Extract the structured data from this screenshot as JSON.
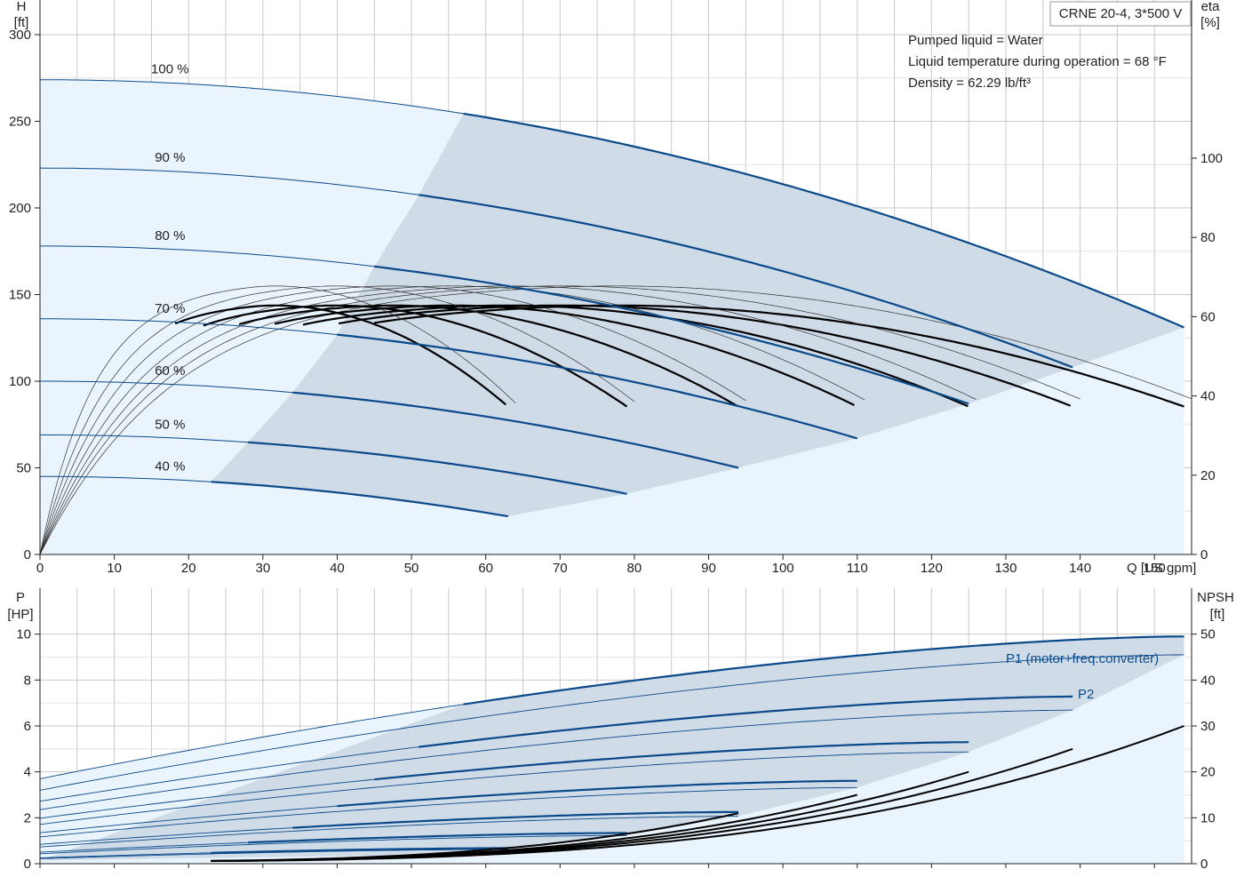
{
  "title_box": "CRNE 20-4, 3*500 V",
  "info_lines": [
    "Pumped liquid = Water",
    "Liquid temperature during operation = 68 °F",
    "Density = 62.29 lb/ft³"
  ],
  "colors": {
    "blue": "#0a4a8a",
    "region_light": "#eaf4fc",
    "region_dark": "#cfdbe7",
    "grid": "#c9c9c9",
    "black": "#000000"
  },
  "chart_data": [
    {
      "type": "line",
      "id": "head",
      "x_axis": {
        "label": "Q [US gpm]",
        "range": [
          0,
          155
        ],
        "ticks": [
          0,
          10,
          20,
          30,
          40,
          50,
          60,
          70,
          80,
          90,
          100,
          110,
          120,
          130,
          140,
          150
        ]
      },
      "y_left": {
        "label_lines": [
          "H",
          "[ft]"
        ],
        "range": [
          0,
          320
        ],
        "ticks": [
          0,
          50,
          100,
          150,
          200,
          250,
          300
        ]
      },
      "y_right": {
        "label_lines": [
          "eta",
          "[%]"
        ],
        "range": [
          0,
          100
        ],
        "ticks": [
          0,
          20,
          40,
          60,
          80,
          100
        ]
      },
      "grid": true,
      "speed_curves": [
        {
          "label": "100 %",
          "q_max": 154,
          "h0": 274,
          "h_end": 131,
          "q_rec_start": 57
        },
        {
          "label": "90 %",
          "q_max": 139,
          "h0": 223,
          "h_end": 108,
          "q_rec_start": 51
        },
        {
          "label": "80 %",
          "q_max": 125,
          "h0": 178,
          "h_end": 87,
          "q_rec_start": 45
        },
        {
          "label": "70 %",
          "q_max": 110,
          "h0": 136,
          "h_end": 67,
          "q_rec_start": 40
        },
        {
          "label": "60 %",
          "q_max": 94,
          "h0": 100,
          "h_end": 50,
          "q_rec_start": 34
        },
        {
          "label": "50 %",
          "q_max": 79,
          "h0": 69,
          "h_end": 35,
          "q_rec_start": 28
        },
        {
          "label": "40 %",
          "q_max": 63,
          "h0": 45,
          "h_end": 22,
          "q_rec_start": 23
        }
      ],
      "efficiency_peak_pct": 69,
      "efficiency_end_pct": 54
    },
    {
      "type": "line",
      "id": "power_npsh",
      "x_axis": {
        "range": [
          0,
          155
        ],
        "ticks": [
          0,
          10,
          20,
          30,
          40,
          50,
          60,
          70,
          80,
          90,
          100,
          110,
          120,
          130,
          140,
          150
        ]
      },
      "y_left": {
        "label_lines": [
          "P",
          "[HP]"
        ],
        "range": [
          0,
          12
        ],
        "ticks": [
          0,
          2,
          4,
          6,
          8,
          10
        ]
      },
      "y_right": {
        "label_lines": [
          "NPSH",
          "[ft]"
        ],
        "range": [
          0,
          60
        ],
        "ticks": [
          0,
          10,
          20,
          30,
          40,
          50
        ]
      },
      "grid": true,
      "series_labels": [
        "P1 (motor+freq.converter)",
        "P2"
      ],
      "p1_full_speed": {
        "p0": 3.7,
        "p_end": 9.9
      },
      "p2_full_speed": {
        "p0": 3.2,
        "p_end": 9.1
      },
      "npsh_end_ft": [
        11,
        15,
        20,
        25,
        30
      ]
    }
  ]
}
